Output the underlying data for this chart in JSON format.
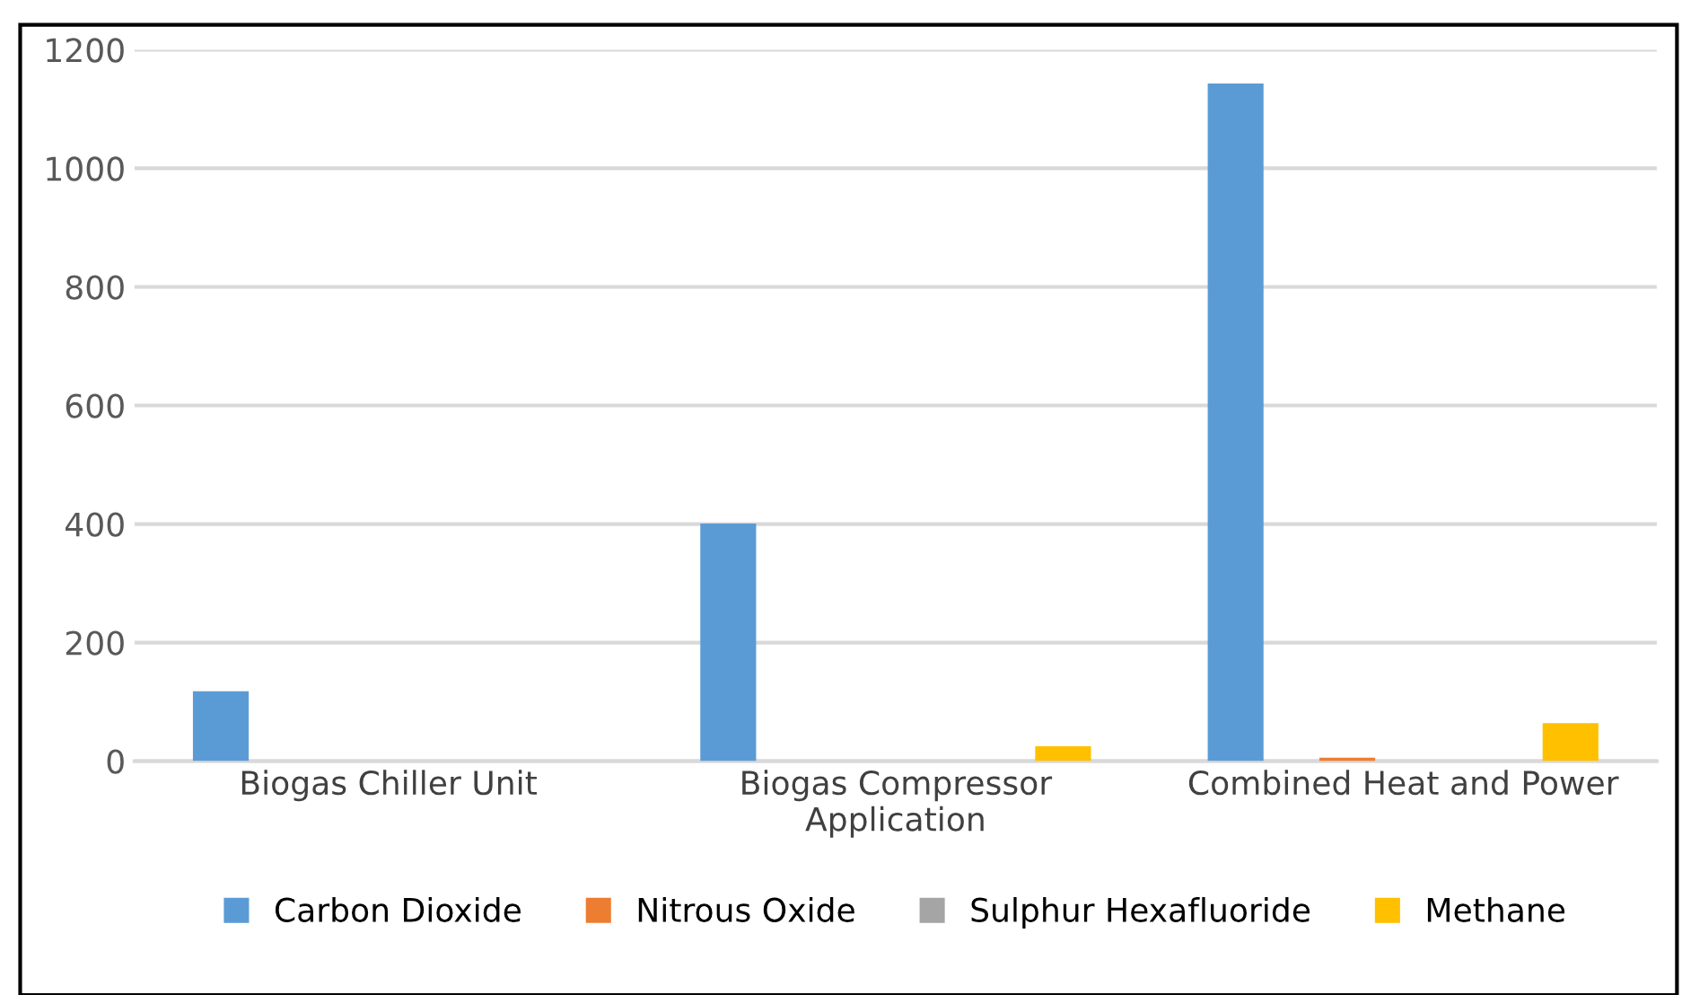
{
  "chart_data": {
    "type": "bar",
    "categories": [
      "Biogas Chiller Unit",
      "Biogas Compressor Application",
      "Combined Heat and Power"
    ],
    "series": [
      {
        "name": "Carbon Dioxide",
        "color": "#5b9bd5",
        "values": [
          118,
          401,
          1143
        ]
      },
      {
        "name": "Nitrous Oxide",
        "color": "#ed7d31",
        "values": [
          0,
          0,
          6
        ]
      },
      {
        "name": "Sulphur Hexafluoride",
        "color": "#a5a5a5",
        "values": [
          0,
          0,
          0
        ]
      },
      {
        "name": "Methane",
        "color": "#ffc000",
        "values": [
          0,
          25,
          64
        ]
      }
    ],
    "ylim": [
      0,
      1200
    ],
    "yticks": [
      0,
      200,
      400,
      600,
      800,
      1000,
      1200
    ],
    "grid": "y",
    "legend": "bottom"
  }
}
